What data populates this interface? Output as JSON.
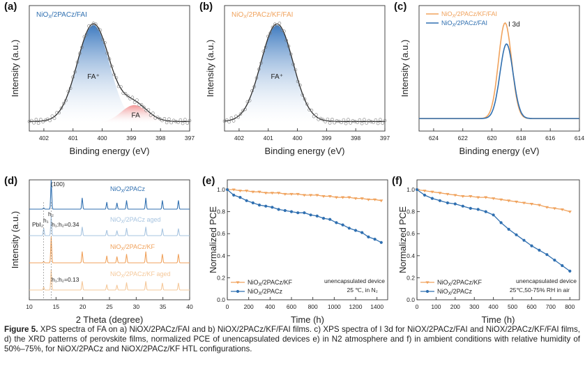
{
  "colors": {
    "blue": "#2f6fb0",
    "orange": "#f0a25c",
    "pale_blue": "#a7c4e0",
    "pale_orange": "#f5c89a",
    "fit": "#2a2a2a"
  },
  "caption": {
    "label": "Figure 5.",
    "text": "XPS spectra of FA on a) NiOX/2PACz/FAI and b) NiOX/2PACz/KF/FAI films. c) XPS spectra of I 3d for NiOX/2PACz/FAI and NiOX/2PACz/KF/FAI films, d) the XRD patterns of perovskite films, normalized PCE of unencapsulated devices e) in N2 atmosphere and f) in ambient conditions with relative humidity of 50%–75%, for NiOX/2PACz and NiOX/2PACz/KF HTL configurations."
  },
  "chart_data": [
    {
      "panel": "(a)",
      "type": "area",
      "label": "NiOx/2PACz/FAI",
      "xlabel": "Binding energy (eV)",
      "ylabel": "Intensity (a.u.)",
      "xlim": [
        402.5,
        397
      ],
      "x_reversed": true,
      "xticks": [
        "402",
        "401",
        "400",
        "399",
        "398",
        "397"
      ],
      "peaks": [
        {
          "name": "FA⁺",
          "center": 400.3,
          "height": 1.0,
          "width": 0.55
        },
        {
          "name": "FA",
          "center": 398.9,
          "height": 0.18,
          "width": 0.45
        }
      ]
    },
    {
      "panel": "(b)",
      "type": "area",
      "label": "NiOx/2PACz/KF/FAI",
      "xlabel": "Binding energy (eV)",
      "ylabel": "Intensity (a.u.)",
      "xlim": [
        402.5,
        397
      ],
      "x_reversed": true,
      "xticks": [
        "402",
        "401",
        "400",
        "399",
        "398",
        "397"
      ],
      "peaks": [
        {
          "name": "FA⁺",
          "center": 400.7,
          "height": 1.0,
          "width": 0.55
        }
      ]
    },
    {
      "panel": "(c)",
      "type": "line",
      "annotation": "I 3d",
      "xlabel": "Binding energy (eV)",
      "ylabel": "Intensity (a.u.)",
      "xlim": [
        625,
        614
      ],
      "x_reversed": true,
      "xticks": [
        "624",
        "622",
        "620",
        "618",
        "616",
        "614"
      ],
      "series": [
        {
          "name": "NiOx/2PACz/KF/FAI",
          "center": 619.1,
          "height": 1.0,
          "width": 0.45
        },
        {
          "name": "NiOx/2PACz/FAI",
          "center": 619.0,
          "height": 0.78,
          "width": 0.45
        }
      ]
    },
    {
      "panel": "(d)",
      "type": "line",
      "xlabel": "2 Theta (degree)",
      "ylabel": "Intensity (a.u.)",
      "xlim": [
        10,
        40
      ],
      "xticks": [
        "10",
        "15",
        "20",
        "25",
        "30",
        "35",
        "40"
      ],
      "peak_positions": [
        12.7,
        14.1,
        19.9,
        24.5,
        26.4,
        28.2,
        31.8,
        34.9,
        37.9
      ],
      "annotations": [
        "(100)",
        "h₂",
        "PbI₂",
        "h₁",
        "h₁:h₂=0.34",
        "h₁:h₂=0.13"
      ],
      "series": [
        {
          "name": "NiOx/2PACz"
        },
        {
          "name": "NiOx/2PACz aged"
        },
        {
          "name": "NiOx/2PACz/KF"
        },
        {
          "name": "NiOx/2PACz/KF aged"
        }
      ]
    },
    {
      "panel": "(e)",
      "type": "line",
      "xlabel": "Time (h)",
      "ylabel": "Normalized PCE",
      "xlim": [
        0,
        1500
      ],
      "ylim": [
        0,
        1.0
      ],
      "xticks": [
        "0",
        "200",
        "400",
        "600",
        "800",
        "1000",
        "1200",
        "1400"
      ],
      "yticks": [
        "0.0",
        "0.2",
        "0.4",
        "0.6",
        "0.8",
        "1.0"
      ],
      "note": [
        "unencapsulated device",
        "25 ℃, in N₂"
      ],
      "x": [
        0,
        60,
        120,
        180,
        240,
        300,
        360,
        420,
        480,
        540,
        600,
        660,
        720,
        780,
        840,
        900,
        960,
        1020,
        1080,
        1140,
        1200,
        1260,
        1320,
        1380,
        1440
      ],
      "series": [
        {
          "name": "NiOx/2PACz/KF",
          "values": [
            1.0,
            1.0,
            0.99,
            0.99,
            0.98,
            0.98,
            0.97,
            0.97,
            0.97,
            0.96,
            0.96,
            0.96,
            0.95,
            0.95,
            0.95,
            0.94,
            0.94,
            0.93,
            0.93,
            0.93,
            0.92,
            0.92,
            0.91,
            0.91,
            0.9
          ]
        },
        {
          "name": "NiOx/2PACz",
          "values": [
            1.0,
            0.95,
            0.93,
            0.9,
            0.88,
            0.86,
            0.85,
            0.84,
            0.82,
            0.81,
            0.8,
            0.79,
            0.79,
            0.77,
            0.76,
            0.74,
            0.73,
            0.7,
            0.68,
            0.65,
            0.63,
            0.61,
            0.57,
            0.55,
            0.52
          ]
        }
      ]
    },
    {
      "panel": "(f)",
      "type": "line",
      "xlabel": "Time (h)",
      "ylabel": "Normalized PCE",
      "xlim": [
        0,
        850
      ],
      "ylim": [
        0,
        1.0
      ],
      "xticks": [
        "0",
        "100",
        "200",
        "300",
        "400",
        "500",
        "600",
        "700",
        "800"
      ],
      "yticks": [
        "0.0",
        "0.2",
        "0.4",
        "0.6",
        "0.8",
        "1.0"
      ],
      "note": [
        "unencapsulated device",
        "25℃,50-75% RH in air"
      ],
      "x": [
        0,
        40,
        80,
        120,
        160,
        200,
        240,
        280,
        320,
        360,
        400,
        440,
        480,
        520,
        560,
        600,
        640,
        680,
        720,
        760,
        800
      ],
      "series": [
        {
          "name": "NiOx/2PACz/KF",
          "values": [
            1.0,
            0.99,
            0.98,
            0.97,
            0.96,
            0.95,
            0.94,
            0.94,
            0.93,
            0.93,
            0.92,
            0.91,
            0.9,
            0.89,
            0.88,
            0.87,
            0.86,
            0.84,
            0.83,
            0.82,
            0.8
          ]
        },
        {
          "name": "NiOx/2PACz",
          "values": [
            1.0,
            0.95,
            0.92,
            0.9,
            0.88,
            0.87,
            0.85,
            0.83,
            0.82,
            0.8,
            0.77,
            0.7,
            0.64,
            0.59,
            0.54,
            0.49,
            0.45,
            0.41,
            0.36,
            0.31,
            0.26
          ]
        }
      ]
    }
  ]
}
